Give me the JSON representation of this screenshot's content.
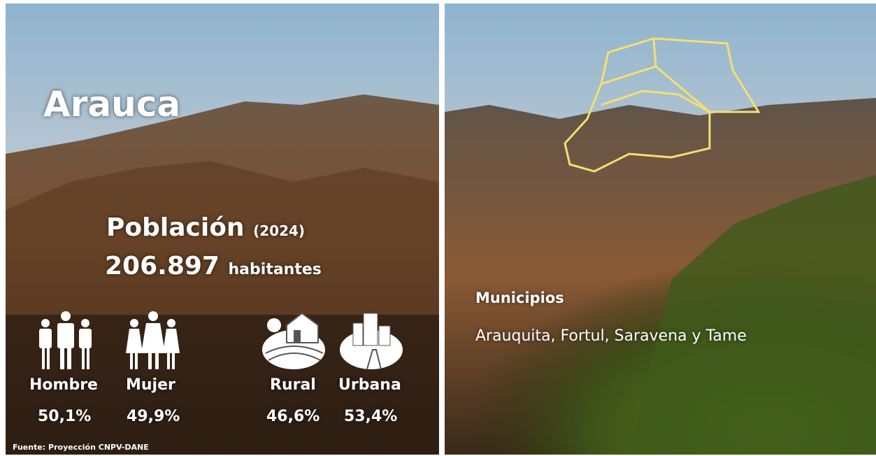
{
  "title": "Arauca",
  "population": {
    "label": "Población",
    "year": "(2024)",
    "value": "206.897",
    "unit": "habitantes"
  },
  "gender": [
    {
      "label": "Hombre",
      "share": "50,1%"
    },
    {
      "label": "Mujer",
      "share": "49,9%"
    }
  ],
  "zone": [
    {
      "label": "Rural",
      "share": "46,6%"
    },
    {
      "label": "Urbana",
      "share": "53,4%"
    }
  ],
  "municipalities": {
    "heading": "Municipios",
    "list": "Arauquita, Fortul, Saravena y Tame"
  },
  "source": "Fuente: Proyección CNPV-DANE"
}
